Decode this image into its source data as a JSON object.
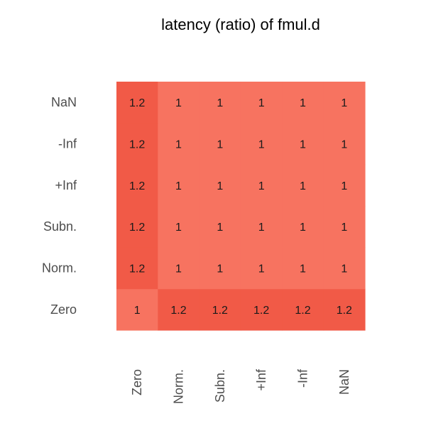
{
  "chart_data": {
    "type": "heatmap",
    "title": "latency (ratio) of fmul.d",
    "xlabel": "",
    "ylabel": "",
    "x_categories": [
      "Zero",
      "Norm.",
      "Subn.",
      "+Inf",
      "-Inf",
      "NaN"
    ],
    "y_categories": [
      "Zero",
      "Norm.",
      "Subn.",
      "+Inf",
      "-Inf",
      "NaN"
    ],
    "values": [
      [
        1,
        1.2,
        1.2,
        1.2,
        1.2,
        1.2
      ],
      [
        1.2,
        1,
        1,
        1,
        1,
        1
      ],
      [
        1.2,
        1,
        1,
        1,
        1,
        1
      ],
      [
        1.2,
        1,
        1,
        1,
        1,
        1
      ],
      [
        1.2,
        1,
        1,
        1,
        1,
        1
      ],
      [
        1.2,
        1,
        1,
        1,
        1,
        1
      ]
    ],
    "value_labels": [
      [
        "1",
        "1.2",
        "1.2",
        "1.2",
        "1.2",
        "1.2"
      ],
      [
        "1.2",
        "1",
        "1",
        "1",
        "1",
        "1"
      ],
      [
        "1.2",
        "1",
        "1",
        "1",
        "1",
        "1"
      ],
      [
        "1.2",
        "1",
        "1",
        "1",
        "1",
        "1"
      ],
      [
        "1.2",
        "1",
        "1",
        "1",
        "1",
        "1"
      ],
      [
        "1.2",
        "1",
        "1",
        "1",
        "1",
        "1"
      ]
    ],
    "colors": {
      "low": "#f77360",
      "high": "#f15a47"
    },
    "grid": false,
    "legend": "none"
  }
}
